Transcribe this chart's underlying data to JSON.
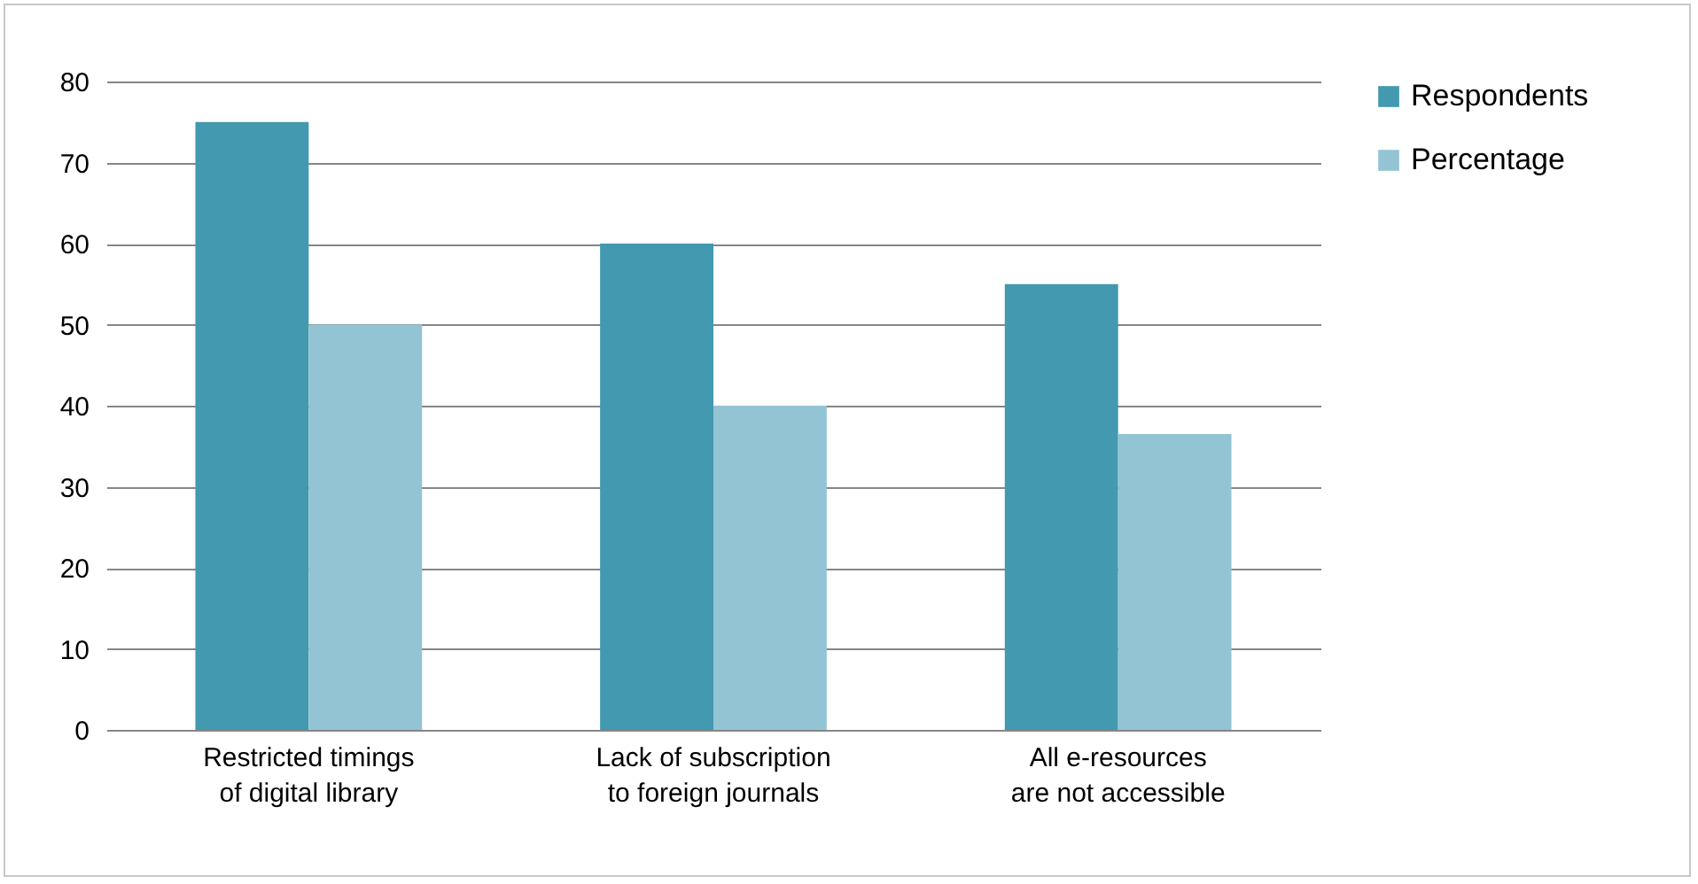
{
  "chart_data": {
    "type": "bar",
    "categories": [
      "Restricted timings of digital library",
      "Lack of subscription to foreign journals",
      "All e-resources are not accessible"
    ],
    "series": [
      {
        "name": "Respondents",
        "color": "#4299b0",
        "values": [
          75,
          60,
          55
        ]
      },
      {
        "name": "Percentage",
        "color": "#93c4d4",
        "values": [
          50,
          40,
          36.5
        ]
      }
    ],
    "ylim": [
      0,
      80
    ],
    "yticks": [
      0,
      10,
      20,
      30,
      40,
      50,
      60,
      70,
      80
    ],
    "grid": "y",
    "legend": "right"
  }
}
